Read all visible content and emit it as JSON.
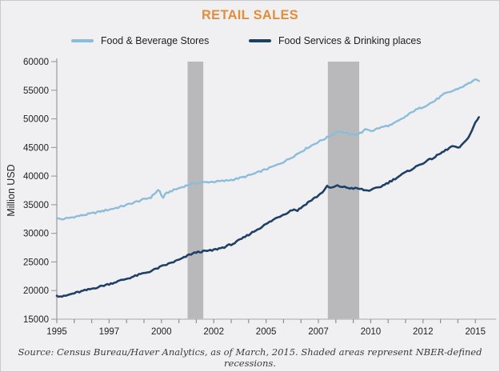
{
  "title": "RETAIL SALES",
  "title_color": "#E78C35",
  "legend": [
    {
      "label": "Food & Beverage Stores",
      "color": "#8CBCDB"
    },
    {
      "label": "Food Services & Drinking places",
      "color": "#1F4066"
    }
  ],
  "source": "Source: Census Bureau/Haver Analytics, as of March, 2015. Shaded areas represent NBER-defined recessions.",
  "chart_data": {
    "type": "line",
    "title": "RETAIL SALES",
    "xlabel": "",
    "ylabel": "Million USD",
    "y_axis": {
      "min": 15000,
      "max": 60000,
      "step": 5000
    },
    "x_axis": {
      "start": 1995,
      "end": 2015.25,
      "labels": [
        "1995",
        "1997",
        "2000",
        "2002",
        "2005",
        "2007",
        "2010",
        "2012",
        "2015"
      ],
      "label_interval_years": 2.5,
      "minor_ticks_per_label": 3
    },
    "grid": false,
    "legend_position": "top",
    "recession_color": "#B9B9BC",
    "recessions": [
      {
        "start": 2001.25,
        "end": 2002.0
      },
      {
        "start": 2007.95,
        "end": 2009.45
      }
    ],
    "series": [
      {
        "name": "Food & Beverage Stores",
        "color": "#8CBCDB",
        "points": [
          [
            1995.0,
            32600
          ],
          [
            1995.25,
            32450
          ],
          [
            1995.6,
            32700
          ],
          [
            1996.0,
            33000
          ],
          [
            1996.5,
            33350
          ],
          [
            1997.0,
            33750
          ],
          [
            1997.5,
            34150
          ],
          [
            1998.0,
            34600
          ],
          [
            1998.5,
            35150
          ],
          [
            1999.0,
            35750
          ],
          [
            1999.5,
            36300
          ],
          [
            1999.88,
            37700
          ],
          [
            2000.05,
            36100
          ],
          [
            2000.2,
            36900
          ],
          [
            2000.4,
            37300
          ],
          [
            2000.7,
            37700
          ],
          [
            2001.0,
            38100
          ],
          [
            2001.4,
            38600
          ],
          [
            2001.8,
            38850
          ],
          [
            2002.2,
            38950
          ],
          [
            2002.6,
            39050
          ],
          [
            2003.0,
            39150
          ],
          [
            2003.5,
            39450
          ],
          [
            2004.0,
            39900
          ],
          [
            2004.5,
            40500
          ],
          [
            2005.0,
            41200
          ],
          [
            2005.5,
            41900
          ],
          [
            2006.0,
            42800
          ],
          [
            2006.5,
            43900
          ],
          [
            2007.0,
            45000
          ],
          [
            2007.4,
            45800
          ],
          [
            2008.0,
            46900
          ],
          [
            2008.45,
            47900
          ],
          [
            2008.8,
            47500
          ],
          [
            2009.1,
            47200
          ],
          [
            2009.45,
            47400
          ],
          [
            2009.8,
            48200
          ],
          [
            2010.05,
            47900
          ],
          [
            2010.4,
            48400
          ],
          [
            2010.8,
            48800
          ],
          [
            2011.0,
            48950
          ],
          [
            2011.4,
            49800
          ],
          [
            2011.8,
            50700
          ],
          [
            2012.0,
            51300
          ],
          [
            2012.5,
            52100
          ],
          [
            2013.0,
            53000
          ],
          [
            2013.5,
            54300
          ],
          [
            2014.0,
            55000
          ],
          [
            2014.5,
            55800
          ],
          [
            2014.95,
            56800
          ],
          [
            2015.17,
            56600
          ]
        ]
      },
      {
        "name": "Food Services & Drinking places",
        "color": "#1F4066",
        "points": [
          [
            1995.0,
            19100
          ],
          [
            1995.3,
            18950
          ],
          [
            1995.7,
            19400
          ],
          [
            1996.0,
            19700
          ],
          [
            1996.5,
            20150
          ],
          [
            1997.0,
            20650
          ],
          [
            1997.5,
            21150
          ],
          [
            1998.0,
            21700
          ],
          [
            1998.5,
            22250
          ],
          [
            1999.0,
            22850
          ],
          [
            1999.5,
            23400
          ],
          [
            2000.0,
            24200
          ],
          [
            2000.5,
            24900
          ],
          [
            2001.0,
            25600
          ],
          [
            2001.35,
            26300
          ],
          [
            2001.7,
            26700
          ],
          [
            2002.0,
            26850
          ],
          [
            2002.4,
            27000
          ],
          [
            2003.0,
            27600
          ],
          [
            2003.5,
            28300
          ],
          [
            2004.0,
            29400
          ],
          [
            2004.5,
            30500
          ],
          [
            2005.0,
            31600
          ],
          [
            2005.5,
            32700
          ],
          [
            2006.0,
            33600
          ],
          [
            2006.3,
            34200
          ],
          [
            2006.5,
            34000
          ],
          [
            2007.0,
            35400
          ],
          [
            2007.5,
            36600
          ],
          [
            2007.8,
            37600
          ],
          [
            2007.92,
            38200
          ],
          [
            2008.1,
            37900
          ],
          [
            2008.4,
            38300
          ],
          [
            2008.7,
            38100
          ],
          [
            2009.0,
            37900
          ],
          [
            2009.45,
            37800
          ],
          [
            2009.8,
            37450
          ],
          [
            2010.1,
            37650
          ],
          [
            2010.5,
            38200
          ],
          [
            2011.0,
            39200
          ],
          [
            2011.5,
            40300
          ],
          [
            2012.0,
            41300
          ],
          [
            2012.5,
            42300
          ],
          [
            2013.0,
            43200
          ],
          [
            2013.4,
            44100
          ],
          [
            2013.75,
            44900
          ],
          [
            2013.95,
            45300
          ],
          [
            2014.15,
            44800
          ],
          [
            2014.45,
            45700
          ],
          [
            2014.75,
            47300
          ],
          [
            2015.0,
            49300
          ],
          [
            2015.17,
            50300
          ]
        ]
      }
    ]
  }
}
